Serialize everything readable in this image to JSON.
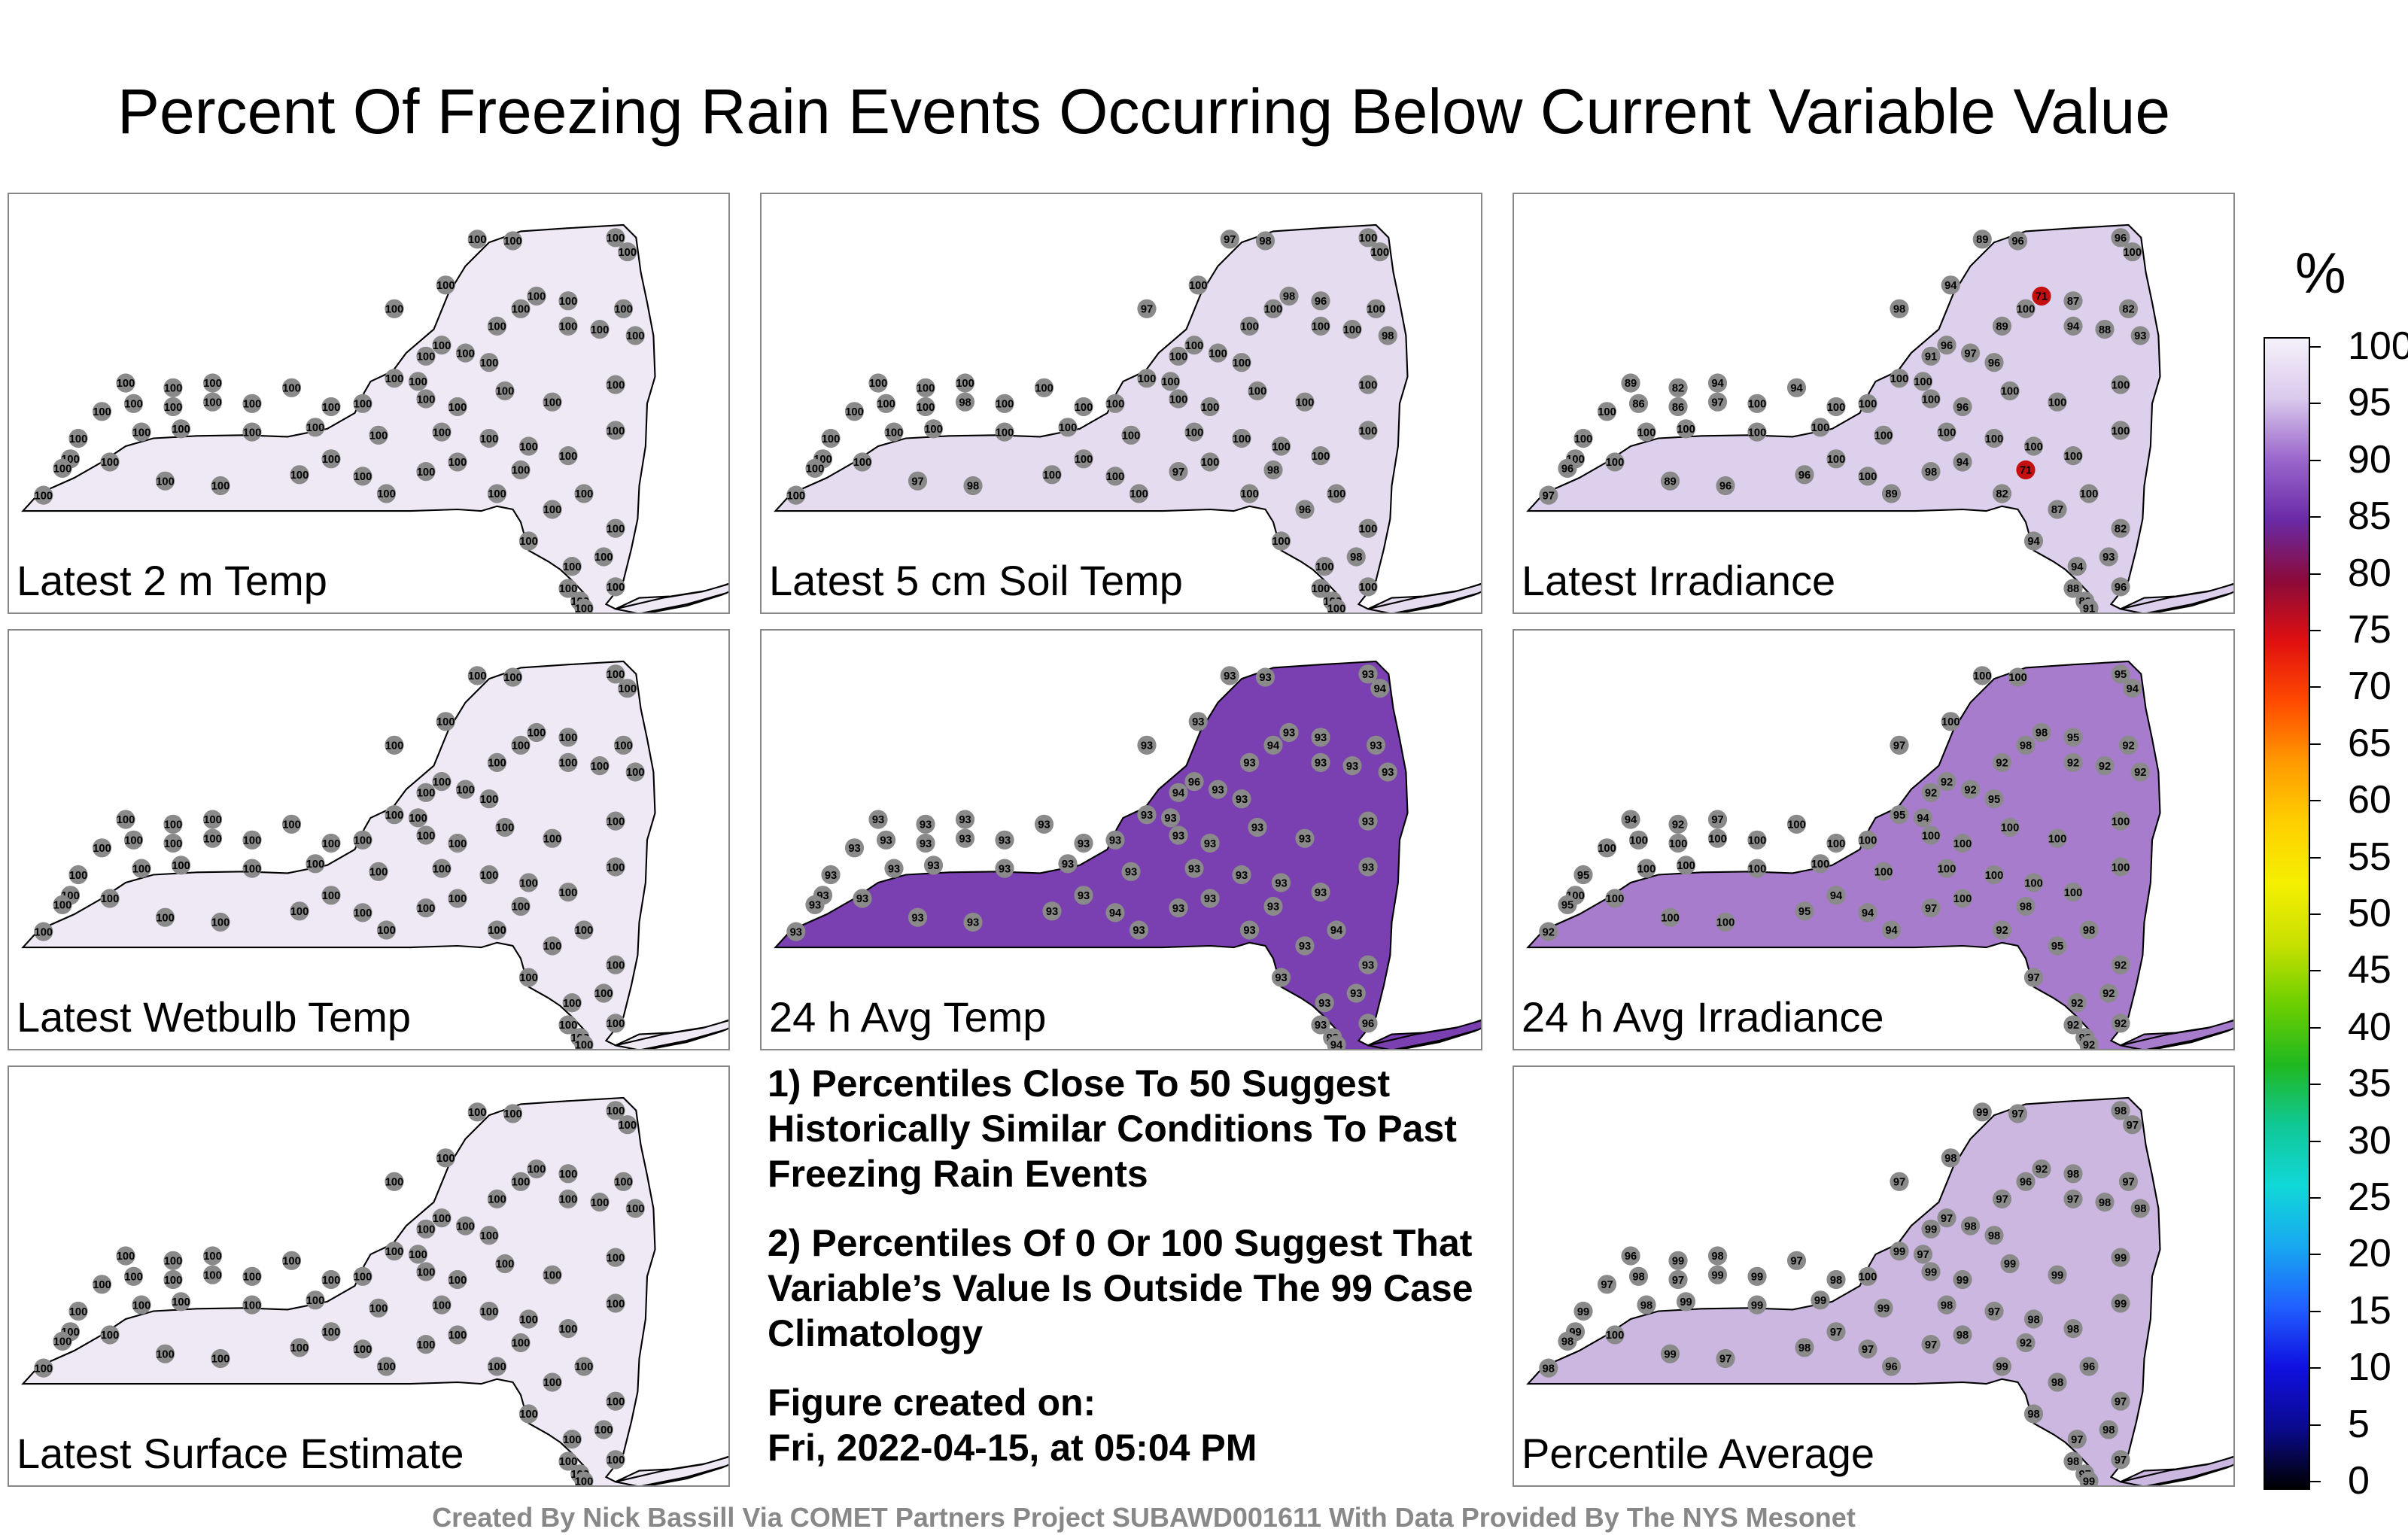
{
  "title": "Percent Of Freezing Rain Events Occurring Below Current Variable Value",
  "panels": [
    {
      "label": "Latest 2 m Temp",
      "fill": "#efe9f5",
      "values": [
        100,
        100,
        100,
        100,
        100,
        100,
        100,
        100,
        100,
        100,
        100,
        100,
        100,
        100,
        100,
        100,
        100,
        100,
        100,
        100,
        100,
        100,
        100,
        100,
        100,
        100,
        100,
        100,
        100,
        100,
        100,
        100,
        100,
        100,
        100,
        100,
        100,
        100,
        100,
        100,
        100,
        100,
        100,
        100,
        100,
        100,
        100,
        100
      ]
    },
    {
      "label": "Latest 5 cm Soil Temp",
      "fill": "#e6dcf0",
      "values": [
        97,
        98,
        100,
        100,
        97,
        100,
        98,
        96,
        100,
        100,
        98,
        100,
        100,
        100,
        100,
        100,
        100,
        100,
        100,
        100,
        100,
        100,
        100,
        100,
        100,
        98,
        100,
        100,
        100,
        100,
        100,
        100,
        100,
        100,
        100,
        100,
        100,
        100,
        100,
        100,
        100,
        100,
        100,
        100,
        100,
        100,
        100,
        100
      ]
    },
    {
      "label": "Latest Irradiance",
      "fill": "#ddd0ec",
      "values": [
        89,
        96,
        96,
        100,
        98,
        94,
        71,
        87,
        100,
        82,
        93,
        94,
        88,
        89,
        96,
        91,
        97,
        96,
        100,
        100,
        89,
        82,
        94,
        86,
        86,
        97,
        100,
        94,
        100,
        100,
        100,
        96,
        100,
        100,
        100,
        100,
        100,
        100,
        100,
        100,
        100,
        100,
        100,
        100,
        100,
        100,
        100,
        100
      ]
    },
    {
      "label": "Latest Wetbulb Temp",
      "fill": "#efe9f5",
      "values": [
        100,
        100,
        100,
        100,
        100,
        100,
        100,
        100,
        100,
        100,
        100,
        100,
        100,
        100,
        100,
        100,
        100,
        100,
        100,
        100,
        100,
        100,
        100,
        100,
        100,
        100,
        100,
        100,
        100,
        100,
        100,
        100,
        100,
        100,
        100,
        100,
        100,
        100,
        100,
        100,
        100,
        100,
        100,
        100,
        100,
        100,
        100,
        100
      ]
    },
    {
      "label": "24 h Avg Temp",
      "fill": "#7a3fb0",
      "values": [
        93,
        93,
        93,
        94,
        93,
        93,
        93,
        93,
        94,
        93,
        93,
        93,
        93,
        93,
        96,
        94,
        93,
        93,
        93,
        93,
        93,
        93,
        93,
        93,
        93,
        93,
        93,
        93,
        93,
        93,
        93,
        93,
        93,
        93,
        93,
        93,
        93,
        93,
        93,
        93,
        93,
        93,
        93,
        93,
        93,
        93,
        93,
        93
      ]
    },
    {
      "label": "24 h Avg Irradiance",
      "fill": "#a77ccc",
      "values": [
        100,
        100,
        95,
        94,
        97,
        100,
        98,
        95,
        98,
        92,
        92,
        92,
        92,
        92,
        92,
        92,
        92,
        95,
        95,
        94,
        94,
        92,
        97,
        100,
        100,
        100,
        100,
        100,
        100,
        100,
        100,
        100,
        100,
        100,
        100,
        100,
        100,
        100,
        100,
        100,
        100,
        100,
        100,
        100,
        100,
        100,
        100,
        100
      ]
    },
    {
      "label": "Latest Surface Estimate",
      "fill": "#efe9f5",
      "values": [
        100,
        100,
        100,
        100,
        100,
        100,
        100,
        100,
        100,
        100,
        100,
        100,
        100,
        100,
        100,
        100,
        100,
        100,
        100,
        100,
        100,
        100,
        100,
        100,
        100,
        100,
        100,
        100,
        100,
        100,
        100,
        100,
        100,
        100,
        100,
        100,
        100,
        100,
        100,
        100,
        100,
        100,
        100,
        100,
        100,
        100,
        100,
        100
      ]
    },
    {
      "label": "Percentile Average",
      "fill": "#cbb7e0",
      "values": [
        99,
        97,
        98,
        97,
        97,
        98,
        92,
        98,
        96,
        97,
        98,
        97,
        98,
        97,
        97,
        99,
        98,
        98,
        99,
        97,
        96,
        99,
        98,
        98,
        97,
        99,
        99,
        97,
        98,
        100,
        99,
        99,
        99,
        99,
        99,
        97,
        98,
        99,
        99,
        99,
        99,
        98,
        97,
        98,
        98,
        99,
        99,
        100
      ]
    }
  ],
  "notes": {
    "note1": "1) Percentiles Close To 50 Suggest Historically Similar Conditions To Past Freezing Rain Events",
    "note2": "2) Percentiles Of 0 Or 100 Suggest That Variable’s Value Is Outside The 99 Case Climatology",
    "created_label": "Figure created on:",
    "created_value": "Fri, 2022-04-15, at 05:04 PM"
  },
  "colorbar": {
    "unit": "%",
    "ticks": [
      "100",
      "95",
      "90",
      "85",
      "80",
      "75",
      "70",
      "65",
      "60",
      "55",
      "50",
      "45",
      "40",
      "35",
      "30",
      "25",
      "20",
      "15",
      "10",
      "5",
      "0"
    ],
    "stops": [
      "#f5f2fa",
      "#d9c8ec",
      "#9a66cc",
      "#6a2aa6",
      "#8b0a3a",
      "#e01010",
      "#ff4a00",
      "#ff9a00",
      "#ffd000",
      "#f5ef00",
      "#c8e000",
      "#6ccf00",
      "#20b820",
      "#10c896",
      "#10d8d8",
      "#18a8f0",
      "#2060ff",
      "#1010e0",
      "#0a0a90",
      "#000000"
    ]
  },
  "footer": "Created By Nick Bassill Via COMET Partners Project SUBAWD001611 With Data Provided By The NYS Mesonet"
}
